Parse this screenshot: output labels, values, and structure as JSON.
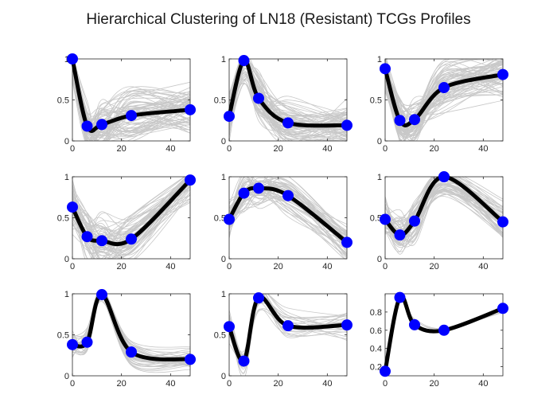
{
  "figure_title": "Hierarchical Clustering of LN18 (Resistant) TCGs Profiles",
  "colors": {
    "background_line": "#c8c8c8",
    "centroid_line": "#000000",
    "marker": "#0000ff",
    "axes": "#262626"
  },
  "chart_data": [
    {
      "type": "line",
      "xlim": [
        0,
        48
      ],
      "ylim": [
        0,
        1
      ],
      "xticks": [
        0,
        20,
        40
      ],
      "xtick_labels": [
        "0",
        "20",
        "40"
      ],
      "yticks": [
        0,
        0.5,
        1
      ],
      "ytick_labels": [
        "0",
        "0.5",
        "1"
      ],
      "centroid": {
        "x": [
          0,
          6,
          12,
          24,
          48
        ],
        "y": [
          1.0,
          0.18,
          0.2,
          0.31,
          0.38
        ]
      },
      "member_profiles": {
        "count": 70,
        "spread": 0.22
      }
    },
    {
      "type": "line",
      "xlim": [
        0,
        48
      ],
      "ylim": [
        0,
        1
      ],
      "xticks": [
        0,
        20,
        40
      ],
      "xtick_labels": [
        "0",
        "20",
        "40"
      ],
      "yticks": [
        0,
        0.5,
        1
      ],
      "ytick_labels": [
        "0",
        "0.5",
        "1"
      ],
      "centroid": {
        "x": [
          0,
          6,
          12,
          24,
          48
        ],
        "y": [
          0.3,
          0.98,
          0.52,
          0.22,
          0.19
        ]
      },
      "member_profiles": {
        "count": 70,
        "spread": 0.22
      }
    },
    {
      "type": "line",
      "xlim": [
        0,
        48
      ],
      "ylim": [
        0,
        1
      ],
      "xticks": [
        0,
        20,
        40
      ],
      "xtick_labels": [
        "0",
        "20",
        "40"
      ],
      "yticks": [
        0,
        0.5,
        1
      ],
      "ytick_labels": [
        "0",
        "0.5",
        "1"
      ],
      "centroid": {
        "x": [
          0,
          6,
          12,
          24,
          48
        ],
        "y": [
          0.88,
          0.25,
          0.26,
          0.65,
          0.81
        ]
      },
      "member_profiles": {
        "count": 70,
        "spread": 0.22
      }
    },
    {
      "type": "line",
      "xlim": [
        0,
        48
      ],
      "ylim": [
        0,
        1
      ],
      "xticks": [
        0,
        20,
        40
      ],
      "xtick_labels": [
        "0",
        "20",
        "40"
      ],
      "yticks": [
        0,
        0.5,
        1
      ],
      "ytick_labels": [
        "0",
        "0.5",
        "1"
      ],
      "centroid": {
        "x": [
          0,
          6,
          12,
          24,
          48
        ],
        "y": [
          0.63,
          0.27,
          0.22,
          0.24,
          0.96
        ]
      },
      "member_profiles": {
        "count": 60,
        "spread": 0.24
      }
    },
    {
      "type": "line",
      "xlim": [
        0,
        48
      ],
      "ylim": [
        0,
        1
      ],
      "xticks": [
        0,
        20,
        40
      ],
      "xtick_labels": [
        "0",
        "20",
        "40"
      ],
      "yticks": [
        0,
        0.5,
        1
      ],
      "ytick_labels": [
        "0",
        "0.5",
        "1"
      ],
      "centroid": {
        "x": [
          0,
          6,
          12,
          24,
          48
        ],
        "y": [
          0.48,
          0.8,
          0.86,
          0.77,
          0.2
        ]
      },
      "member_profiles": {
        "count": 50,
        "spread": 0.18
      }
    },
    {
      "type": "line",
      "xlim": [
        0,
        48
      ],
      "ylim": [
        0,
        1
      ],
      "xticks": [
        0,
        20,
        40
      ],
      "xtick_labels": [
        "0",
        "20",
        "40"
      ],
      "yticks": [
        0,
        0.5,
        1
      ],
      "ytick_labels": [
        "0",
        "0.5",
        "1"
      ],
      "centroid": {
        "x": [
          0,
          6,
          12,
          24,
          48
        ],
        "y": [
          0.48,
          0.29,
          0.46,
          1.0,
          0.45
        ]
      },
      "member_profiles": {
        "count": 60,
        "spread": 0.2
      }
    },
    {
      "type": "line",
      "xlim": [
        0,
        48
      ],
      "ylim": [
        0,
        1
      ],
      "xticks": [
        0,
        20,
        40
      ],
      "xtick_labels": [
        "0",
        "20",
        "40"
      ],
      "yticks": [
        0,
        0.5,
        1
      ],
      "ytick_labels": [
        "0",
        "0.5",
        "1"
      ],
      "centroid": {
        "x": [
          0,
          6,
          12,
          24,
          48
        ],
        "y": [
          0.38,
          0.41,
          0.99,
          0.29,
          0.2
        ]
      },
      "member_profiles": {
        "count": 35,
        "spread": 0.12
      }
    },
    {
      "type": "line",
      "xlim": [
        0,
        48
      ],
      "ylim": [
        0,
        1
      ],
      "xticks": [
        0,
        20,
        40
      ],
      "xtick_labels": [
        "0",
        "20",
        "40"
      ],
      "yticks": [
        0,
        0.5,
        1
      ],
      "ytick_labels": [
        "0",
        "0.5",
        "1"
      ],
      "centroid": {
        "x": [
          0,
          6,
          12,
          24,
          48
        ],
        "y": [
          0.6,
          0.18,
          0.95,
          0.61,
          0.62
        ]
      },
      "member_profiles": {
        "count": 25,
        "spread": 0.15
      }
    },
    {
      "type": "line",
      "xlim": [
        0,
        48
      ],
      "ylim": [
        0.1,
        1.0
      ],
      "xticks": [
        0,
        20,
        40
      ],
      "xtick_labels": [
        "0",
        "20",
        "40"
      ],
      "yticks": [
        0.2,
        0.4,
        0.6,
        0.8
      ],
      "ytick_labels": [
        "0.2",
        "0.4",
        "0.6",
        "0.8"
      ],
      "centroid": {
        "x": [
          0,
          6,
          12,
          24,
          48
        ],
        "y": [
          0.15,
          0.96,
          0.66,
          0.6,
          0.84
        ]
      },
      "member_profiles": {
        "count": 4,
        "spread": 0.06
      }
    }
  ]
}
